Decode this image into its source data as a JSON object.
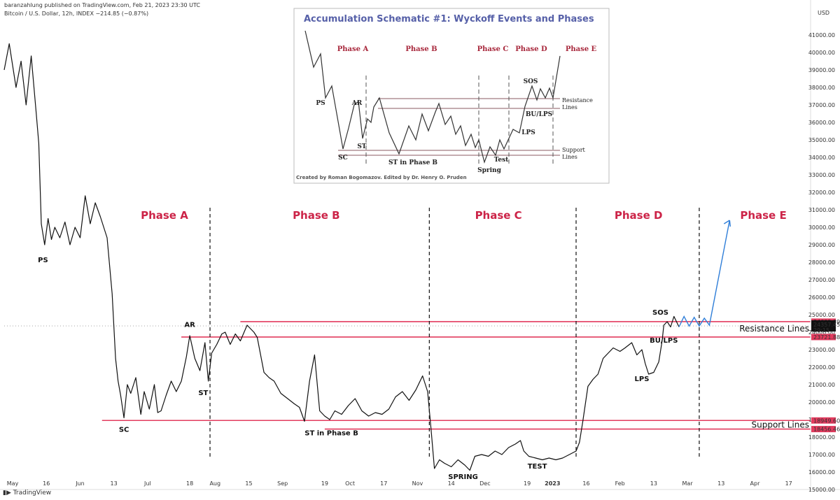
{
  "header": {
    "publisher_line": "baranzahlung published on TradingView.com, Feb 21, 2023 23:30 UTC",
    "symbol_line": "Bitcoin / U.S. Dollar, 12h, INDEX  −214.85 (−0.87%)"
  },
  "footer": {
    "brand": "TradingView"
  },
  "colors": {
    "phase_text": "#cc2448",
    "level_line": "#e23b5e",
    "projection": "#2f7ed8",
    "price": "#111111"
  },
  "chart_data": {
    "type": "line",
    "title": "",
    "xlabel": "",
    "ylabel": "USD",
    "ylim": [
      15000,
      42000
    ],
    "x_tick_labels": [
      "May",
      "16",
      "Jun",
      "13",
      "Jul",
      "18",
      "Aug",
      "15",
      "Sep",
      "19",
      "Oct",
      "17",
      "Nov",
      "14",
      "Dec",
      "19",
      "2023",
      "16",
      "Feb",
      "13",
      "Mar",
      "13",
      "Apr",
      "17"
    ],
    "x_tick_positions": [
      0.5,
      2.5,
      4.5,
      6.5,
      8.5,
      11,
      12.5,
      14.5,
      16.5,
      19,
      20.5,
      22.5,
      24.5,
      26.5,
      28.5,
      31,
      32.5,
      34.5,
      36.5,
      38.5,
      40.5,
      42.5,
      44.5,
      46.5
    ],
    "y_ticks": [
      15000,
      16000,
      17000,
      18000,
      19000,
      20000,
      21000,
      22000,
      23000,
      24000,
      25000,
      26000,
      27000,
      28000,
      29000,
      30000,
      31000,
      32000,
      33000,
      34000,
      35000,
      36000,
      37000,
      38000,
      39000,
      40000,
      41000
    ],
    "series": [
      {
        "name": "",
        "points": [
          [
            0.0,
            39000
          ],
          [
            0.3,
            40500
          ],
          [
            0.7,
            38000
          ],
          [
            1.0,
            39500
          ],
          [
            1.3,
            37000
          ],
          [
            1.6,
            39800
          ],
          [
            1.9,
            36500
          ],
          [
            2.05,
            34800
          ],
          [
            2.2,
            30200
          ],
          [
            2.4,
            29000
          ],
          [
            2.6,
            30500
          ],
          [
            2.8,
            29300
          ],
          [
            3.0,
            30000
          ],
          [
            3.3,
            29400
          ],
          [
            3.6,
            30300
          ],
          [
            3.9,
            29000
          ],
          [
            4.2,
            30000
          ],
          [
            4.5,
            29400
          ],
          [
            4.8,
            31800
          ],
          [
            5.1,
            30200
          ],
          [
            5.4,
            31400
          ],
          [
            5.7,
            30600
          ],
          [
            6.1,
            29400
          ],
          [
            6.4,
            26200
          ],
          [
            6.6,
            22500
          ],
          [
            6.75,
            21200
          ],
          [
            6.9,
            20400
          ],
          [
            7.1,
            19100
          ],
          [
            7.3,
            21000
          ],
          [
            7.5,
            20500
          ],
          [
            7.8,
            21400
          ],
          [
            8.1,
            19300
          ],
          [
            8.3,
            20600
          ],
          [
            8.6,
            19600
          ],
          [
            8.9,
            21000
          ],
          [
            9.1,
            19400
          ],
          [
            9.3,
            19500
          ],
          [
            9.6,
            20400
          ],
          [
            9.9,
            21200
          ],
          [
            10.2,
            20600
          ],
          [
            10.5,
            21200
          ],
          [
            10.8,
            22600
          ],
          [
            11.0,
            23800
          ],
          [
            11.3,
            22500
          ],
          [
            11.6,
            21800
          ],
          [
            11.9,
            23400
          ],
          [
            12.1,
            21200
          ],
          [
            12.3,
            22800
          ],
          [
            12.6,
            23300
          ],
          [
            12.9,
            23900
          ],
          [
            13.1,
            24000
          ],
          [
            13.4,
            23300
          ],
          [
            13.7,
            23900
          ],
          [
            14.0,
            23500
          ],
          [
            14.4,
            24400
          ],
          [
            14.8,
            24000
          ],
          [
            15.0,
            23700
          ],
          [
            15.4,
            21700
          ],
          [
            15.7,
            21400
          ],
          [
            16.0,
            21200
          ],
          [
            16.4,
            20500
          ],
          [
            16.8,
            20200
          ],
          [
            17.2,
            19900
          ],
          [
            17.5,
            19700
          ],
          [
            17.8,
            18900
          ],
          [
            18.1,
            21200
          ],
          [
            18.4,
            22700
          ],
          [
            18.7,
            19500
          ],
          [
            19.0,
            19200
          ],
          [
            19.3,
            19000
          ],
          [
            19.6,
            19500
          ],
          [
            20.0,
            19300
          ],
          [
            20.4,
            19800
          ],
          [
            20.8,
            20200
          ],
          [
            21.2,
            19500
          ],
          [
            21.6,
            19200
          ],
          [
            22.0,
            19400
          ],
          [
            22.4,
            19300
          ],
          [
            22.8,
            19600
          ],
          [
            23.2,
            20300
          ],
          [
            23.6,
            20600
          ],
          [
            24.0,
            20100
          ],
          [
            24.4,
            20700
          ],
          [
            24.8,
            21500
          ],
          [
            25.1,
            20600
          ],
          [
            25.3,
            18500
          ],
          [
            25.5,
            16200
          ],
          [
            25.8,
            16700
          ],
          [
            26.1,
            16500
          ],
          [
            26.5,
            16300
          ],
          [
            26.9,
            16700
          ],
          [
            27.3,
            16400
          ],
          [
            27.6,
            16100
          ],
          [
            27.9,
            16900
          ],
          [
            28.3,
            17000
          ],
          [
            28.7,
            16900
          ],
          [
            29.1,
            17200
          ],
          [
            29.5,
            17000
          ],
          [
            29.9,
            17400
          ],
          [
            30.3,
            17600
          ],
          [
            30.6,
            17800
          ],
          [
            30.8,
            17200
          ],
          [
            31.1,
            16900
          ],
          [
            31.5,
            16800
          ],
          [
            31.9,
            16700
          ],
          [
            32.3,
            16800
          ],
          [
            32.7,
            16700
          ],
          [
            33.1,
            16800
          ],
          [
            33.5,
            17000
          ],
          [
            33.9,
            17200
          ],
          [
            34.1,
            17700
          ],
          [
            34.3,
            18900
          ],
          [
            34.6,
            20900
          ],
          [
            34.9,
            21300
          ],
          [
            35.2,
            21600
          ],
          [
            35.5,
            22500
          ],
          [
            35.8,
            22800
          ],
          [
            36.1,
            23100
          ],
          [
            36.5,
            22900
          ],
          [
            36.8,
            23100
          ],
          [
            37.2,
            23400
          ],
          [
            37.5,
            22700
          ],
          [
            37.8,
            23000
          ],
          [
            38.0,
            22200
          ],
          [
            38.2,
            21600
          ],
          [
            38.5,
            21700
          ],
          [
            38.8,
            22300
          ],
          [
            39.0,
            23500
          ],
          [
            39.1,
            24400
          ],
          [
            39.3,
            24600
          ],
          [
            39.5,
            24300
          ],
          [
            39.7,
            24900
          ],
          [
            39.9,
            24500
          ],
          [
            40.0,
            24300
          ]
        ]
      }
    ],
    "projection": [
      [
        40.0,
        24300
      ],
      [
        40.3,
        24900
      ],
      [
        40.6,
        24350
      ],
      [
        40.9,
        24850
      ],
      [
        41.2,
        24350
      ],
      [
        41.5,
        24800
      ],
      [
        41.8,
        24400
      ],
      [
        43.0,
        30400
      ]
    ],
    "resistance_levels": [
      24602.39,
      23721.88
    ],
    "support_levels": [
      18949.6,
      18456.46
    ],
    "price_tags": [
      "24602.39",
      "24357.45",
      "29:15",
      "23721.88",
      "18949.60",
      "18456.46"
    ],
    "phase_dividers_x": [
      12.2,
      25.2,
      33.9,
      41.2
    ],
    "phases": [
      {
        "label": "Phase A",
        "x": 9.5
      },
      {
        "label": "Phase B",
        "x": 18.5
      },
      {
        "label": "Phase C",
        "x": 29.3
      },
      {
        "label": "Phase D",
        "x": 37.6
      },
      {
        "label": "Phase E",
        "x": 45.0
      }
    ],
    "events": [
      {
        "label": "PS",
        "x": 2.3,
        "y": 28000
      },
      {
        "label": "SC",
        "x": 7.1,
        "y": 18300
      },
      {
        "label": "AR",
        "x": 11.0,
        "y": 24300
      },
      {
        "label": "ST",
        "x": 11.8,
        "y": 20400
      },
      {
        "label": "ST in Phase B",
        "x": 19.4,
        "y": 18100
      },
      {
        "label": "SPRING",
        "x": 27.2,
        "y": 15600
      },
      {
        "label": "TEST",
        "x": 31.6,
        "y": 16200
      },
      {
        "label": "LPS",
        "x": 37.8,
        "y": 21200
      },
      {
        "label": "BU/LPS",
        "x": 39.1,
        "y": 23400
      },
      {
        "label": "SOS",
        "x": 38.9,
        "y": 25000
      }
    ],
    "zone_labels": [
      {
        "label": "Resistance Lines",
        "y": 24050
      },
      {
        "label": "Support Lines",
        "y": 18550
      }
    ],
    "inset": {
      "title": "Accumulation Schematic #1: Wyckoff Events and Phases",
      "credit": "Created by Roman Bogomazov. Edited by Dr. Henry O. Pruden",
      "phases": [
        "Phase A",
        "Phase B",
        "Phase C",
        "Phase D",
        "Phase E"
      ],
      "events": [
        "PS",
        "SC",
        "AR",
        "ST",
        "ST in Phase B",
        "Spring",
        "Test",
        "SOS",
        "LPS",
        "BU/LPS"
      ],
      "line_labels": [
        "Resistance",
        "Lines",
        "Support",
        "Lines"
      ]
    }
  }
}
